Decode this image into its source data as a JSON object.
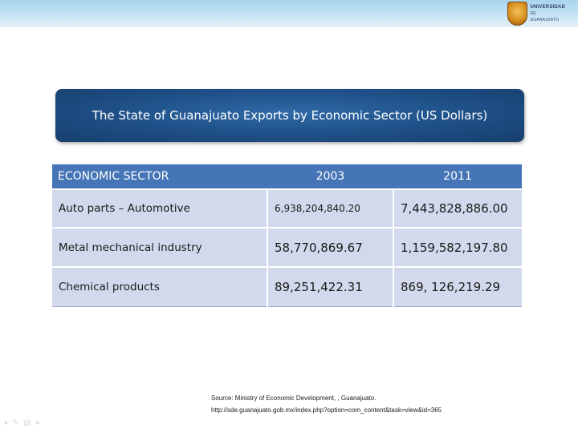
{
  "header": {
    "logo": {
      "line1": "UNIVERSIDAD",
      "line2": "DE GUANAJUATO"
    }
  },
  "title": "The State of Guanajuato Exports by Economic Sector (US Dollars)",
  "table": {
    "columns": [
      "ECONOMIC SECTOR",
      "2003",
      "2011"
    ],
    "rows": [
      {
        "sector": "Auto parts – Automotive",
        "y2003": "6,938,204,840.20",
        "y2011": "7,443,828,886.00"
      },
      {
        "sector": "Metal mechanical industry",
        "y2003": "58,770,869.67",
        "y2011": "1,159,582,197.80"
      },
      {
        "sector": "Chemical products",
        "y2003": "89,251,422.31",
        "y2011": "869, 126,219.29"
      }
    ]
  },
  "source": {
    "line1": "Source: Ministry of Economic Development, , Guanajuato.",
    "line2": "http://sde.guanajuato.gob.mx/index.php?option=com_content&task=view&id=365"
  },
  "nav_icons": [
    "prev-icon",
    "pen-icon",
    "menu-icon",
    "next-icon"
  ]
}
